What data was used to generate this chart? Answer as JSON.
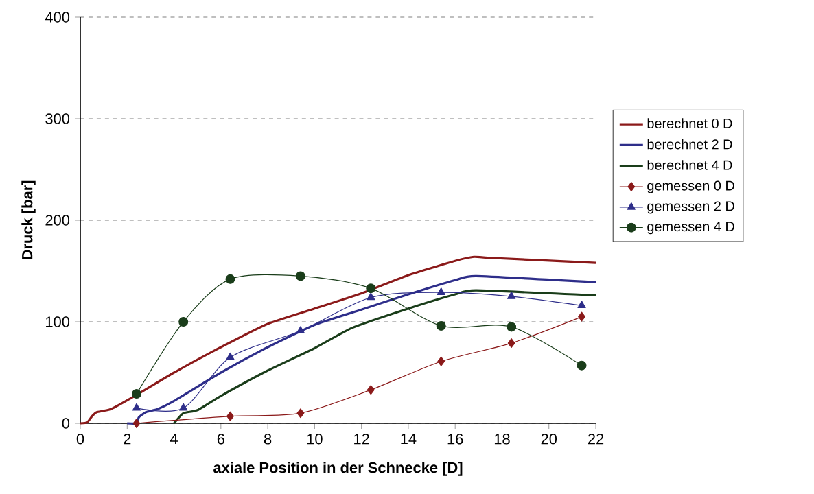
{
  "chart_data": {
    "type": "line",
    "xlabel": "axiale Position in der Schnecke [D]",
    "ylabel": "Druck [bar]",
    "xlim": [
      0,
      22
    ],
    "xticks": [
      0,
      2,
      4,
      6,
      8,
      10,
      12,
      14,
      16,
      18,
      20,
      22
    ],
    "ylim": [
      0,
      400
    ],
    "yticks": [
      0,
      100,
      200,
      300,
      400
    ],
    "grid": "y",
    "legend": "right",
    "series": [
      {
        "name": "berechnet 0 D",
        "color": "#8b1a1a",
        "marker": "none",
        "x": [
          0,
          0.3,
          0.5,
          0.7,
          1.3,
          2.4,
          4,
          6,
          8,
          10,
          12,
          14,
          16,
          16.8,
          17.5,
          22
        ],
        "values": [
          0,
          1,
          7,
          11,
          14,
          28,
          50,
          75,
          98,
          113,
          128,
          146,
          160,
          164,
          163,
          158
        ]
      },
      {
        "name": "berechnet 2 D",
        "color": "#2e2e8a",
        "marker": "none",
        "x": [
          2,
          2.4,
          2.5,
          2.8,
          3.3,
          4,
          6,
          8,
          10,
          12,
          14,
          16,
          16.9,
          22
        ],
        "values": [
          0,
          0,
          6,
          11,
          14,
          22,
          50,
          75,
          97,
          112,
          127,
          141,
          145,
          139
        ]
      },
      {
        "name": "berechnet 4 D",
        "color": "#1a3d1a",
        "marker": "none",
        "x": [
          4,
          4.4,
          5,
          6,
          8,
          10,
          11.6,
          14,
          16,
          16.9,
          22
        ],
        "values": [
          0,
          10,
          13,
          27,
          52,
          74,
          94,
          113,
          127,
          131,
          126
        ]
      },
      {
        "name": "gemessen 0 D",
        "color": "#8b1a1a",
        "marker": "diamond",
        "x": [
          2.4,
          6.4,
          9.4,
          12.4,
          15.4,
          18.4,
          21.4
        ],
        "values": [
          0,
          7,
          10,
          33,
          61,
          79,
          105
        ]
      },
      {
        "name": "gemessen 2 D",
        "color": "#2e2e8a",
        "marker": "triangle",
        "x": [
          2.4,
          4.4,
          6.4,
          9.4,
          12.4,
          15.4,
          18.4,
          21.4
        ],
        "values": [
          15,
          15,
          65,
          91,
          124,
          129,
          125,
          116
        ]
      },
      {
        "name": "gemessen 4 D",
        "color": "#1a3d1a",
        "marker": "circle",
        "x": [
          2.4,
          4.4,
          6.4,
          9.4,
          12.4,
          15.4,
          18.4,
          21.4
        ],
        "values": [
          29,
          100,
          142,
          145,
          133,
          96,
          95,
          57
        ]
      }
    ]
  }
}
